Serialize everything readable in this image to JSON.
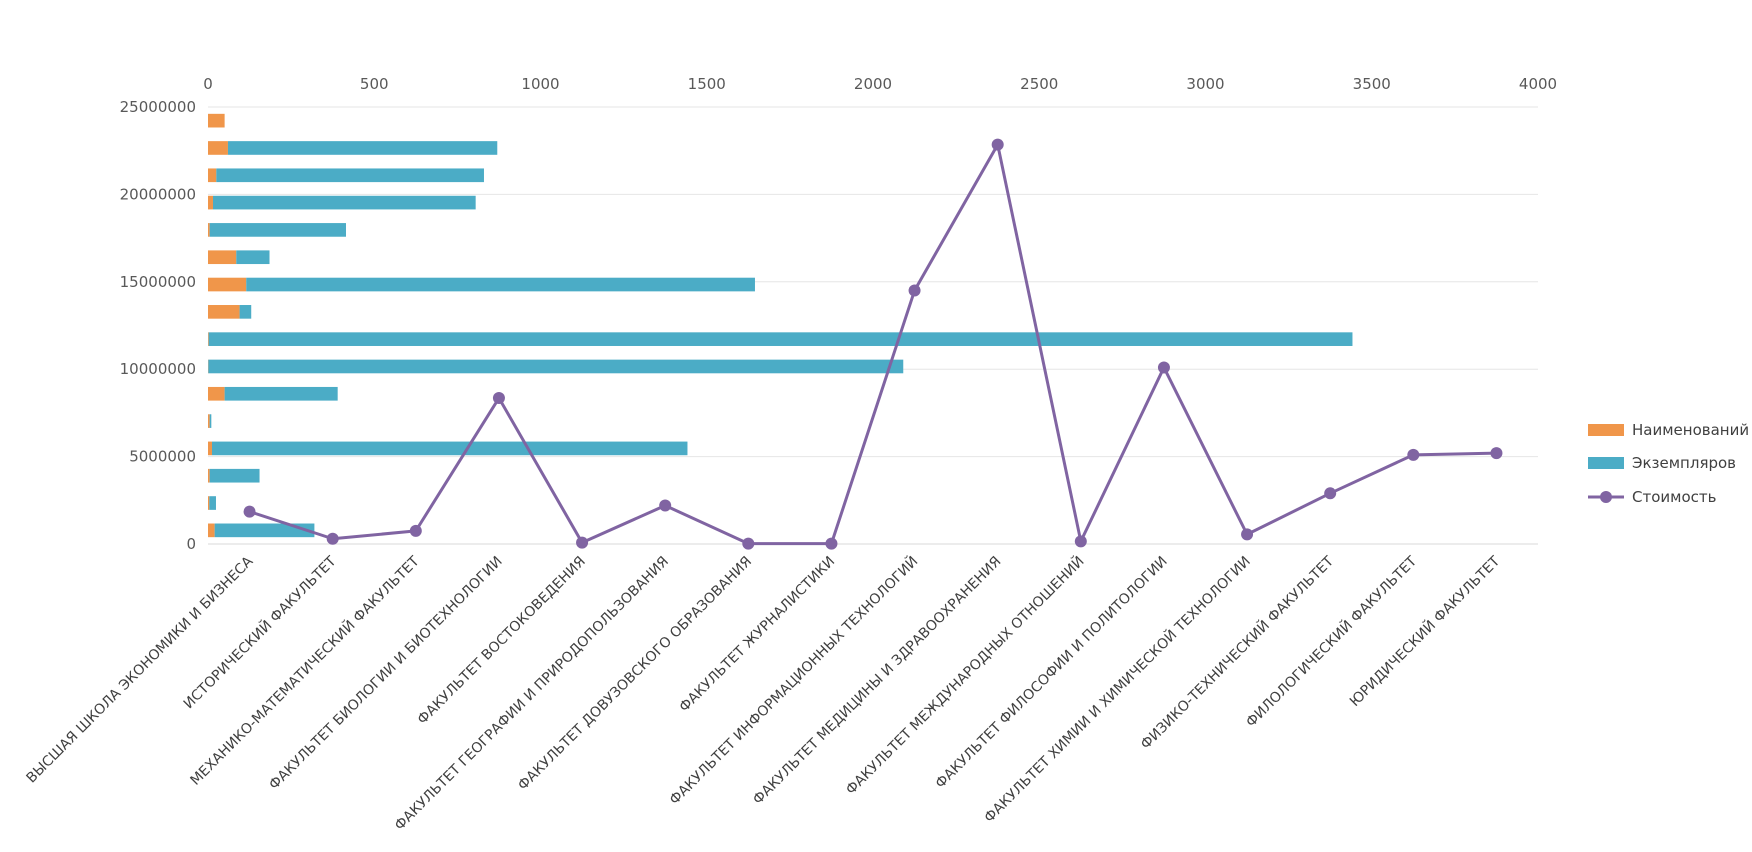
{
  "chart_data": {
    "type": "bar+line",
    "title": "",
    "categories": [
      "ВЫСШАЯ ШКОЛА ЭКОНОМИКИ И БИЗНЕСА",
      "ИСТОРИЧЕСКИЙ ФАКУЛЬТЕТ",
      "МЕХАНИКО-МАТЕМАТИЧЕСКИЙ ФАКУЛЬТЕТ",
      "ФАКУЛЬТЕТ БИОЛОГИИ И БИОТЕХНОЛОГИИ",
      "ФАКУЛЬТЕТ ВОСТОКОВЕДЕНИЯ",
      "ФАКУЛЬТЕТ ГЕОГРАФИИ И ПРИРОДОПОЛЬЗОВАНИЯ",
      "ФАКУЛЬТЕТ ДОВУЗОВСКОГО ОБРАЗОВАНИЯ",
      "ФАКУЛЬТЕТ ЖУРНАЛИСТИКИ",
      "ФАКУЛЬТЕТ ИНФОРМАЦИОННЫХ ТЕХНОЛОГИЙ",
      "ФАКУЛЬТЕТ МЕДИЦИНЫ И ЗДРАВООХРАНЕНИЯ",
      "ФАКУЛЬТЕТ МЕЖДУНАРОДНЫХ ОТНОШЕНИЙ",
      "ФАКУЛЬТЕТ ФИЛОСОФИИ И ПОЛИТОЛОГИИ",
      "ФАКУЛЬТЕТ ХИМИИ И ХИМИЧЕСКОЙ ТЕХНОЛОГИИ",
      "ФИЗИКО-ТЕХНИЧЕСКИЙ ФАКУЛЬТЕТ",
      "ФИЛОЛОГИЧЕСКИЙ ФАКУЛЬТЕТ",
      "ЮРИДИЧЕСКИЙ ФАКУЛЬТЕТ"
    ],
    "series": [
      {
        "name": "Наименований",
        "kind": "bar-stacked-horizontal",
        "axis": "top",
        "color": "#F0964A",
        "values": [
          20,
          4,
          5,
          12,
          5,
          50,
          1,
          2,
          95,
          115,
          85,
          5,
          15,
          25,
          60,
          50
        ]
      },
      {
        "name": "Экземпляров",
        "kind": "bar-stacked-horizontal",
        "axis": "top",
        "color": "#4BACC6",
        "values": [
          300,
          20,
          150,
          1430,
          5,
          340,
          2090,
          3440,
          35,
          1530,
          100,
          410,
          790,
          805,
          810,
          0
        ]
      },
      {
        "name": "Стоимость",
        "kind": "line",
        "axis": "left",
        "color": "#8064A2",
        "values": [
          1850000,
          300000,
          750000,
          8350000,
          80000,
          2200000,
          20000,
          20000,
          14500000,
          22850000,
          150000,
          10100000,
          550000,
          2900000,
          5100000,
          5200000
        ]
      }
    ],
    "y_axis": {
      "ticks": [
        "0",
        "5000000",
        "10000000",
        "15000000",
        "20000000",
        "25000000"
      ],
      "ylim": [
        0,
        25000000
      ]
    },
    "x_top_axis": {
      "ticks": [
        "0",
        "500",
        "1000",
        "1500",
        "2000",
        "2500",
        "3000",
        "3500",
        "4000"
      ],
      "xlim": [
        0,
        4000
      ]
    },
    "grid": true,
    "legend_position": "right"
  }
}
